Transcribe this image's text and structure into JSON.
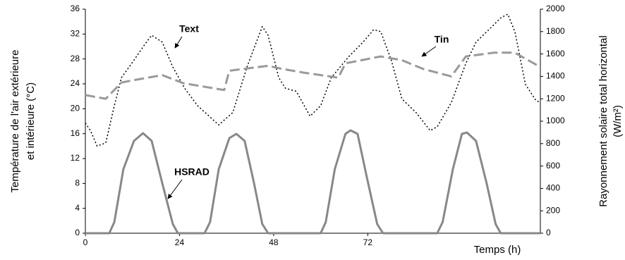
{
  "chart_data": {
    "type": "line",
    "xlabel": "Temps (h)",
    "ylabel": [
      "Température de l'air extérieure",
      "et intérieure (°C)"
    ],
    "y2label": [
      "Rayonnement solaire total horizontal",
      "(W/m²)"
    ],
    "annotations": [
      "Text",
      "Tin",
      "HSRAD"
    ],
    "xlim": [
      0,
      116
    ],
    "xticks": [
      0,
      24,
      48,
      72
    ],
    "ylim": [
      0,
      36
    ],
    "yticks": [
      0,
      4,
      8,
      12,
      16,
      20,
      24,
      28,
      32,
      36
    ],
    "y2lim": [
      0,
      2000
    ],
    "y2ticks": [
      0,
      200,
      400,
      600,
      800,
      1000,
      1200,
      1400,
      1600,
      1800,
      2000
    ],
    "grid": false,
    "series": [
      {
        "name": "Text",
        "color": "#000000",
        "style": "dotted",
        "x": [
          0,
          1.3,
          3,
          5.2,
          7.4,
          9.2,
          12.4,
          15.1,
          16.9,
          19.6,
          22.3,
          25.3,
          28.6,
          34,
          37.6,
          41.2,
          43.9,
          45.1,
          46.6,
          49.3,
          51,
          53.8,
          57.3,
          60,
          62.7,
          67.2,
          70.8,
          73.5,
          75.3,
          78,
          80.7,
          84.3,
          87.9,
          89.7,
          93.3,
          97,
          99.6,
          103.2,
          105.9,
          107.7,
          109.5,
          112.2,
          114.9,
          116
        ],
        "values": [
          17.7,
          16.5,
          14,
          14.5,
          20.5,
          25,
          27.8,
          30.3,
          31.8,
          30.7,
          26.7,
          23.3,
          20.5,
          17.4,
          19.4,
          26.7,
          31.2,
          33.2,
          31.8,
          25,
          23.3,
          22.8,
          18.8,
          20.5,
          25,
          28.4,
          30.7,
          32.7,
          32.4,
          27.8,
          21.6,
          19.4,
          16.5,
          17.1,
          21,
          27.3,
          30.7,
          32.9,
          34.6,
          35.2,
          32.4,
          23.9,
          21.3,
          21
        ]
      },
      {
        "name": "Tin",
        "color": "#999999",
        "style": "dashed",
        "x": [
          0,
          5.2,
          9.2,
          11.5,
          19.6,
          25,
          35.4,
          36.7,
          46.6,
          50.2,
          55.7,
          64.5,
          66.3,
          75.3,
          80.7,
          86.1,
          93.3,
          97,
          104.1,
          109.5,
          116
        ],
        "values": [
          22.2,
          21.6,
          24.2,
          24.5,
          25.4,
          24.1,
          23,
          26.1,
          26.9,
          26.4,
          25.8,
          25,
          27.3,
          28.4,
          27.8,
          26.4,
          25.2,
          28.4,
          29,
          29,
          26.7
        ]
      },
      {
        "name": "HSRAD",
        "color": "#888888",
        "style": "solid",
        "axis": "y2",
        "x": [
          0,
          6.1,
          7.4,
          9.7,
          12.4,
          14.7,
          16.9,
          19.6,
          22.3,
          23.6,
          30.4,
          31.8,
          34,
          36.7,
          38.5,
          40.6,
          43,
          45.1,
          46.6,
          60,
          61.3,
          63.6,
          66.3,
          67.6,
          69.4,
          71.7,
          74.4,
          75.9,
          89.7,
          91.1,
          93.7,
          96,
          97.3,
          99.6,
          102.3,
          104.6,
          105.9,
          116
        ],
        "values": [
          0,
          0,
          100,
          572,
          824,
          893,
          824,
          447,
          82,
          0,
          0,
          100,
          572,
          849,
          887,
          824,
          447,
          82,
          0,
          0,
          100,
          572,
          887,
          918,
          887,
          509,
          82,
          0,
          0,
          100,
          572,
          887,
          899,
          824,
          447,
          82,
          0,
          0
        ]
      }
    ]
  }
}
